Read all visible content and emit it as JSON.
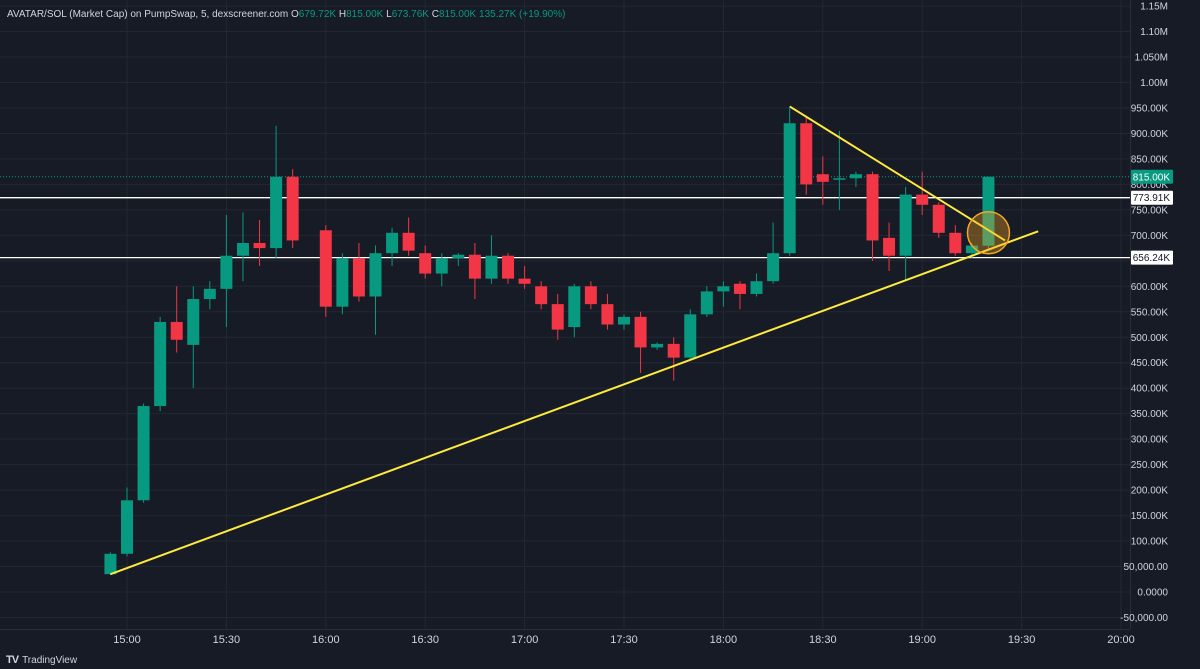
{
  "legend": {
    "symbol": "AVATAR/SOL (Market Cap) on PumpSwap, 5, dexscreener.com",
    "o_label": "O",
    "o": "679.72K",
    "h_label": "H",
    "h": "815.00K",
    "l_label": "L",
    "l": "673.76K",
    "c_label": "C",
    "c": "815.00K",
    "change": "135.27K (+19.90%)"
  },
  "brand": {
    "name": "TradingView",
    "icon": "tradingview-logo-icon"
  },
  "colors": {
    "background": "#171b26",
    "up": "#089981",
    "down": "#f23645",
    "trendline": "#ffeb3b",
    "level": "#ffffff",
    "circle": "#f5a623",
    "grid": "#232733"
  },
  "chart_data": {
    "type": "candlestick",
    "title": "AVATAR/SOL (Market Cap) on PumpSwap, 5, dexscreener.com",
    "interval": "5",
    "xlabels": [
      "15:00",
      "15:30",
      "16:00",
      "16:30",
      "17:00",
      "17:30",
      "18:00",
      "18:30",
      "19:00",
      "19:30",
      "20:00"
    ],
    "ylabels": [
      {
        "v": 1150000,
        "t": "1.15M"
      },
      {
        "v": 1100000,
        "t": "1.10M"
      },
      {
        "v": 1050000,
        "t": "1.050M"
      },
      {
        "v": 1000000,
        "t": "1.00M"
      },
      {
        "v": 950000,
        "t": "950.00K"
      },
      {
        "v": 900000,
        "t": "900.00K"
      },
      {
        "v": 850000,
        "t": "850.00K"
      },
      {
        "v": 800000,
        "t": "800.00K"
      },
      {
        "v": 750000,
        "t": "750.00K"
      },
      {
        "v": 700000,
        "t": "700.00K"
      },
      {
        "v": 650000,
        "t": "650.00K"
      },
      {
        "v": 600000,
        "t": "600.00K"
      },
      {
        "v": 550000,
        "t": "550.00K"
      },
      {
        "v": 500000,
        "t": "500.00K"
      },
      {
        "v": 450000,
        "t": "450.00K"
      },
      {
        "v": 400000,
        "t": "400.00K"
      },
      {
        "v": 350000,
        "t": "350.00K"
      },
      {
        "v": 300000,
        "t": "300.00K"
      },
      {
        "v": 250000,
        "t": "250.00K"
      },
      {
        "v": 200000,
        "t": "200.00K"
      },
      {
        "v": 150000,
        "t": "150.00K"
      },
      {
        "v": 100000,
        "t": "100.00K"
      },
      {
        "v": 50000,
        "t": "50,000.00"
      },
      {
        "v": 0,
        "t": "0.0000"
      },
      {
        "v": -50000,
        "t": "-50,000.00"
      }
    ],
    "candles": [
      [
        "14:55",
        35000,
        78000,
        33000,
        75000
      ],
      [
        "15:00",
        75000,
        205000,
        70000,
        180000
      ],
      [
        "15:05",
        180000,
        370000,
        175000,
        365000
      ],
      [
        "15:10",
        365000,
        540000,
        355000,
        530000
      ],
      [
        "15:15",
        530000,
        600000,
        470000,
        495000
      ],
      [
        "15:20",
        485000,
        600000,
        400000,
        575000
      ],
      [
        "15:25",
        575000,
        610000,
        555000,
        595000
      ],
      [
        "15:30",
        595000,
        740000,
        520000,
        660000
      ],
      [
        "15:35",
        660000,
        745000,
        610000,
        685000
      ],
      [
        "15:40",
        685000,
        730000,
        640000,
        675000
      ],
      [
        "15:45",
        675000,
        915000,
        655000,
        815000
      ],
      [
        "15:50",
        815000,
        830000,
        675000,
        690000
      ],
      [
        "16:00",
        710000,
        720000,
        540000,
        560000
      ],
      [
        "16:05",
        560000,
        665000,
        545000,
        655000
      ],
      [
        "16:10",
        655000,
        685000,
        570000,
        580000
      ],
      [
        "16:15",
        580000,
        680000,
        505000,
        665000
      ],
      [
        "16:20",
        665000,
        715000,
        640000,
        705000
      ],
      [
        "16:25",
        705000,
        735000,
        660000,
        670000
      ],
      [
        "16:30",
        665000,
        680000,
        615000,
        625000
      ],
      [
        "16:35",
        625000,
        665000,
        600000,
        655000
      ],
      [
        "16:40",
        655000,
        665000,
        640000,
        662000
      ],
      [
        "16:45",
        662000,
        685000,
        575000,
        615000
      ],
      [
        "16:50",
        615000,
        700000,
        605000,
        660000
      ],
      [
        "16:55",
        660000,
        665000,
        605000,
        615000
      ],
      [
        "17:00",
        615000,
        640000,
        595000,
        605000
      ],
      [
        "17:05",
        600000,
        610000,
        555000,
        565000
      ],
      [
        "17:10",
        565000,
        585000,
        495000,
        515000
      ],
      [
        "17:15",
        520000,
        605000,
        500000,
        600000
      ],
      [
        "17:20",
        600000,
        610000,
        555000,
        565000
      ],
      [
        "17:25",
        565000,
        585000,
        515000,
        525000
      ],
      [
        "17:30",
        525000,
        545000,
        515000,
        540000
      ],
      [
        "17:35",
        540000,
        550000,
        430000,
        480000
      ],
      [
        "17:40",
        480000,
        490000,
        475000,
        487000
      ],
      [
        "17:45",
        487000,
        500000,
        415000,
        460000
      ],
      [
        "17:50",
        460000,
        555000,
        455000,
        545000
      ],
      [
        "17:55",
        545000,
        600000,
        540000,
        590000
      ],
      [
        "18:00",
        590000,
        610000,
        560000,
        600000
      ],
      [
        "18:05",
        605000,
        610000,
        555000,
        585000
      ],
      [
        "18:10",
        585000,
        625000,
        580000,
        610000
      ],
      [
        "18:15",
        610000,
        725000,
        605000,
        665000
      ],
      [
        "18:20",
        665000,
        950000,
        660000,
        920000
      ],
      [
        "18:25",
        920000,
        935000,
        780000,
        800000
      ],
      [
        "18:30",
        820000,
        855000,
        760000,
        805000
      ],
      [
        "18:35",
        810000,
        905000,
        750000,
        812000
      ],
      [
        "18:40",
        812000,
        825000,
        795000,
        820000
      ],
      [
        "18:45",
        820000,
        825000,
        650000,
        690000
      ],
      [
        "18:50",
        695000,
        725000,
        630000,
        660000
      ],
      [
        "18:55",
        660000,
        795000,
        610000,
        780000
      ],
      [
        "19:00",
        780000,
        825000,
        740000,
        760000
      ],
      [
        "19:05",
        760000,
        765000,
        695000,
        705000
      ],
      [
        "19:10",
        705000,
        720000,
        660000,
        665000
      ],
      [
        "19:15",
        665000,
        685000,
        655000,
        680000
      ],
      [
        "19:20",
        679720,
        815000,
        673760,
        815000
      ]
    ],
    "levels": [
      {
        "value": 773910,
        "label": "773.91K"
      },
      {
        "value": 656240,
        "label": "656.24K"
      }
    ],
    "last_price": {
      "value": 815000,
      "label": "815.00K"
    },
    "trendlines": [
      {
        "from": [
          "14:55",
          35000
        ],
        "to": [
          "19:35",
          708000
        ]
      },
      {
        "from": [
          "18:20",
          953000
        ],
        "to": [
          "19:25",
          690000
        ]
      }
    ],
    "highlight": {
      "at": [
        "19:20",
        705000
      ]
    },
    "ylim": [
      -60000,
      1170000
    ],
    "grid": true
  }
}
